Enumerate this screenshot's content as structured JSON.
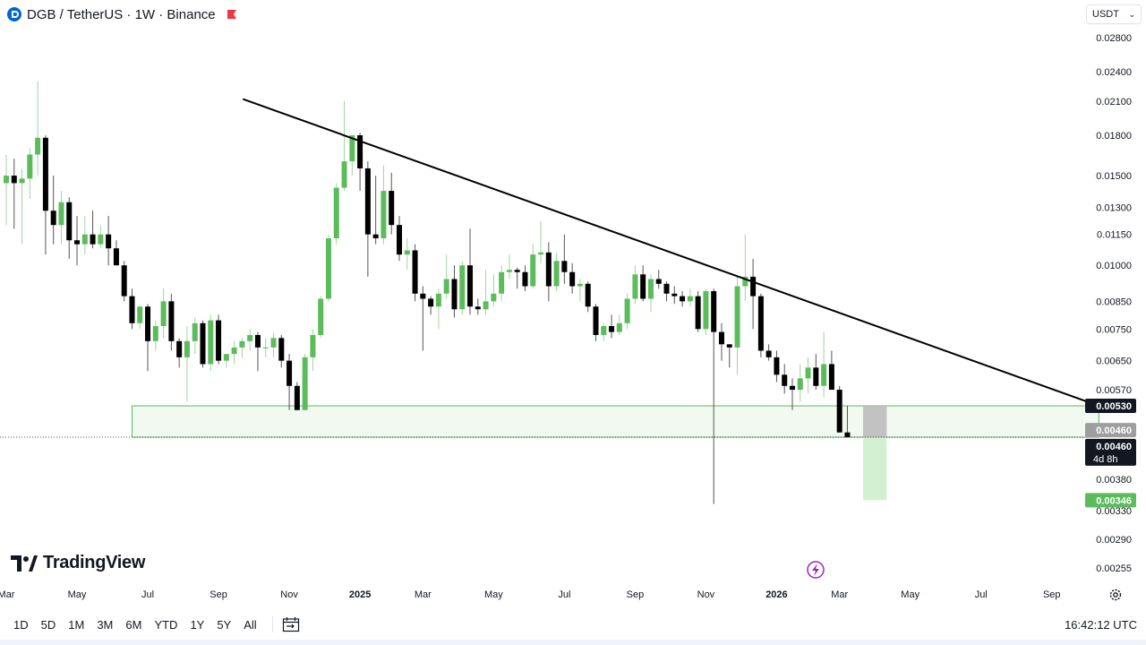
{
  "header": {
    "symbol": "DGB",
    "title": "DGB / TetherUS · 1W · Binance",
    "currency": "USDT"
  },
  "brand": "TradingView",
  "timeframes": [
    "1D",
    "5D",
    "1M",
    "3M",
    "6M",
    "YTD",
    "1Y",
    "5Y",
    "All"
  ],
  "clock": "16:42:12 UTC",
  "chart_data": {
    "type": "candlestick",
    "scale": "log",
    "ylim": [
      0.0024,
      0.03
    ],
    "y_ticks": [
      0.028,
      0.024,
      0.021,
      0.018,
      0.015,
      0.013,
      0.0115,
      0.01,
      0.0085,
      0.0075,
      0.0065,
      0.0057,
      0.0038,
      0.0033,
      0.0029,
      0.00255
    ],
    "y_tick_labels": [
      "0.02800",
      "0.02400",
      "0.02100",
      "0.01800",
      "0.01500",
      "0.01300",
      "0.01150",
      "0.01000",
      "0.00850",
      "0.00750",
      "0.00650",
      "0.00570",
      "0.00380",
      "0.00330",
      "0.00290",
      "0.00255"
    ],
    "x_labels": [
      {
        "label": "Mar",
        "week": 0,
        "bold": false
      },
      {
        "label": "May",
        "week": 9,
        "bold": false
      },
      {
        "label": "Jul",
        "week": 18,
        "bold": false
      },
      {
        "label": "Sep",
        "week": 27,
        "bold": false
      },
      {
        "label": "Nov",
        "week": 36,
        "bold": false
      },
      {
        "label": "2025",
        "week": 45,
        "bold": true
      },
      {
        "label": "Mar",
        "week": 53,
        "bold": false
      },
      {
        "label": "May",
        "week": 62,
        "bold": false
      },
      {
        "label": "Jul",
        "week": 71,
        "bold": false
      },
      {
        "label": "Sep",
        "week": 80,
        "bold": false
      },
      {
        "label": "Nov",
        "week": 89,
        "bold": false
      },
      {
        "label": "2026",
        "week": 98,
        "bold": true
      },
      {
        "label": "Mar",
        "week": 106,
        "bold": false
      },
      {
        "label": "May",
        "week": 115,
        "bold": false
      },
      {
        "label": "Jul",
        "week": 124,
        "bold": false
      },
      {
        "label": "Sep",
        "week": 133,
        "bold": false
      }
    ],
    "colors": {
      "up": "#5cbc5c",
      "down": "#000000",
      "support": "#5cbc5c",
      "trend": "#000000",
      "target": "#c8ecc8"
    },
    "candles": [
      {
        "o": 0.0145,
        "h": 0.0165,
        "l": 0.012,
        "c": 0.015
      },
      {
        "o": 0.015,
        "h": 0.0162,
        "l": 0.0118,
        "c": 0.0145
      },
      {
        "o": 0.0145,
        "h": 0.0155,
        "l": 0.011,
        "c": 0.0148
      },
      {
        "o": 0.0148,
        "h": 0.017,
        "l": 0.0135,
        "c": 0.0165
      },
      {
        "o": 0.0165,
        "h": 0.023,
        "l": 0.015,
        "c": 0.0178
      },
      {
        "o": 0.0178,
        "h": 0.018,
        "l": 0.0105,
        "c": 0.0128
      },
      {
        "o": 0.0128,
        "h": 0.015,
        "l": 0.011,
        "c": 0.012
      },
      {
        "o": 0.012,
        "h": 0.014,
        "l": 0.011,
        "c": 0.0133
      },
      {
        "o": 0.0133,
        "h": 0.0136,
        "l": 0.0103,
        "c": 0.0112
      },
      {
        "o": 0.0112,
        "h": 0.0125,
        "l": 0.01,
        "c": 0.011
      },
      {
        "o": 0.011,
        "h": 0.0125,
        "l": 0.0105,
        "c": 0.0115
      },
      {
        "o": 0.0115,
        "h": 0.0128,
        "l": 0.0108,
        "c": 0.011
      },
      {
        "o": 0.011,
        "h": 0.012,
        "l": 0.0108,
        "c": 0.0115
      },
      {
        "o": 0.0115,
        "h": 0.0125,
        "l": 0.01,
        "c": 0.0108
      },
      {
        "o": 0.0108,
        "h": 0.0112,
        "l": 0.01,
        "c": 0.01
      },
      {
        "o": 0.01,
        "h": 0.0102,
        "l": 0.0085,
        "c": 0.0087
      },
      {
        "o": 0.0087,
        "h": 0.009,
        "l": 0.0075,
        "c": 0.0077
      },
      {
        "o": 0.0077,
        "h": 0.0083,
        "l": 0.0075,
        "c": 0.0083
      },
      {
        "o": 0.0083,
        "h": 0.0084,
        "l": 0.0062,
        "c": 0.0071
      },
      {
        "o": 0.0071,
        "h": 0.0078,
        "l": 0.0068,
        "c": 0.0076
      },
      {
        "o": 0.0076,
        "h": 0.009,
        "l": 0.0072,
        "c": 0.0085
      },
      {
        "o": 0.0085,
        "h": 0.0088,
        "l": 0.0068,
        "c": 0.0071
      },
      {
        "o": 0.0071,
        "h": 0.0072,
        "l": 0.0063,
        "c": 0.0066
      },
      {
        "o": 0.0066,
        "h": 0.0076,
        "l": 0.0054,
        "c": 0.0071
      },
      {
        "o": 0.0071,
        "h": 0.0079,
        "l": 0.0067,
        "c": 0.0077
      },
      {
        "o": 0.0077,
        "h": 0.0078,
        "l": 0.0063,
        "c": 0.0064
      },
      {
        "o": 0.0064,
        "h": 0.008,
        "l": 0.0062,
        "c": 0.0078
      },
      {
        "o": 0.0078,
        "h": 0.008,
        "l": 0.0064,
        "c": 0.0065
      },
      {
        "o": 0.0065,
        "h": 0.0067,
        "l": 0.0063,
        "c": 0.0067
      },
      {
        "o": 0.0067,
        "h": 0.0071,
        "l": 0.0064,
        "c": 0.0069
      },
      {
        "o": 0.0069,
        "h": 0.0072,
        "l": 0.0066,
        "c": 0.0071
      },
      {
        "o": 0.0071,
        "h": 0.0075,
        "l": 0.0068,
        "c": 0.0073
      },
      {
        "o": 0.0073,
        "h": 0.0074,
        "l": 0.0062,
        "c": 0.0069
      },
      {
        "o": 0.0069,
        "h": 0.0072,
        "l": 0.0066,
        "c": 0.0069
      },
      {
        "o": 0.0069,
        "h": 0.0074,
        "l": 0.0066,
        "c": 0.0072
      },
      {
        "o": 0.0072,
        "h": 0.0073,
        "l": 0.0063,
        "c": 0.0065
      },
      {
        "o": 0.0065,
        "h": 0.0067,
        "l": 0.0052,
        "c": 0.0058
      },
      {
        "o": 0.0058,
        "h": 0.0059,
        "l": 0.0052,
        "c": 0.0052
      },
      {
        "o": 0.0052,
        "h": 0.0067,
        "l": 0.0052,
        "c": 0.0066
      },
      {
        "o": 0.0066,
        "h": 0.0075,
        "l": 0.0062,
        "c": 0.0073
      },
      {
        "o": 0.0073,
        "h": 0.0087,
        "l": 0.0072,
        "c": 0.0086
      },
      {
        "o": 0.0086,
        "h": 0.0115,
        "l": 0.0085,
        "c": 0.0113
      },
      {
        "o": 0.0113,
        "h": 0.0145,
        "l": 0.011,
        "c": 0.0142
      },
      {
        "o": 0.0142,
        "h": 0.021,
        "l": 0.014,
        "c": 0.016
      },
      {
        "o": 0.016,
        "h": 0.018,
        "l": 0.015,
        "c": 0.018
      },
      {
        "o": 0.018,
        "h": 0.0182,
        "l": 0.014,
        "c": 0.0155
      },
      {
        "o": 0.0155,
        "h": 0.016,
        "l": 0.0095,
        "c": 0.0115
      },
      {
        "o": 0.0115,
        "h": 0.015,
        "l": 0.011,
        "c": 0.0113
      },
      {
        "o": 0.0113,
        "h": 0.0157,
        "l": 0.011,
        "c": 0.014
      },
      {
        "o": 0.014,
        "h": 0.0152,
        "l": 0.0115,
        "c": 0.012
      },
      {
        "o": 0.012,
        "h": 0.0125,
        "l": 0.0102,
        "c": 0.0105
      },
      {
        "o": 0.0105,
        "h": 0.0113,
        "l": 0.0098,
        "c": 0.0107
      },
      {
        "o": 0.0107,
        "h": 0.011,
        "l": 0.0085,
        "c": 0.0088
      },
      {
        "o": 0.0088,
        "h": 0.0091,
        "l": 0.0068,
        "c": 0.0086
      },
      {
        "o": 0.0086,
        "h": 0.0087,
        "l": 0.008,
        "c": 0.0083
      },
      {
        "o": 0.0083,
        "h": 0.009,
        "l": 0.0075,
        "c": 0.0088
      },
      {
        "o": 0.0088,
        "h": 0.0105,
        "l": 0.0086,
        "c": 0.0094
      },
      {
        "o": 0.0094,
        "h": 0.01,
        "l": 0.0079,
        "c": 0.0082
      },
      {
        "o": 0.0082,
        "h": 0.0102,
        "l": 0.008,
        "c": 0.01
      },
      {
        "o": 0.01,
        "h": 0.0118,
        "l": 0.008,
        "c": 0.0083
      },
      {
        "o": 0.0083,
        "h": 0.0086,
        "l": 0.008,
        "c": 0.0082
      },
      {
        "o": 0.0082,
        "h": 0.0098,
        "l": 0.008,
        "c": 0.0085
      },
      {
        "o": 0.0085,
        "h": 0.0096,
        "l": 0.0083,
        "c": 0.0088
      },
      {
        "o": 0.0088,
        "h": 0.01,
        "l": 0.0085,
        "c": 0.0097
      },
      {
        "o": 0.0097,
        "h": 0.0105,
        "l": 0.0094,
        "c": 0.0098
      },
      {
        "o": 0.0098,
        "h": 0.0099,
        "l": 0.009,
        "c": 0.0097
      },
      {
        "o": 0.0097,
        "h": 0.01,
        "l": 0.0089,
        "c": 0.0091
      },
      {
        "o": 0.0091,
        "h": 0.011,
        "l": 0.009,
        "c": 0.0105
      },
      {
        "o": 0.0105,
        "h": 0.0122,
        "l": 0.0101,
        "c": 0.0106
      },
      {
        "o": 0.0106,
        "h": 0.0111,
        "l": 0.0085,
        "c": 0.0091
      },
      {
        "o": 0.0091,
        "h": 0.0106,
        "l": 0.0089,
        "c": 0.0102
      },
      {
        "o": 0.0102,
        "h": 0.0115,
        "l": 0.0092,
        "c": 0.0097
      },
      {
        "o": 0.0097,
        "h": 0.0101,
        "l": 0.0088,
        "c": 0.0091
      },
      {
        "o": 0.0091,
        "h": 0.0094,
        "l": 0.0085,
        "c": 0.0092
      },
      {
        "o": 0.0092,
        "h": 0.0093,
        "l": 0.0081,
        "c": 0.0083
      },
      {
        "o": 0.0083,
        "h": 0.0084,
        "l": 0.0071,
        "c": 0.0073
      },
      {
        "o": 0.0073,
        "h": 0.0077,
        "l": 0.0071,
        "c": 0.0076
      },
      {
        "o": 0.0076,
        "h": 0.008,
        "l": 0.0072,
        "c": 0.0074
      },
      {
        "o": 0.0074,
        "h": 0.008,
        "l": 0.0073,
        "c": 0.0077
      },
      {
        "o": 0.0077,
        "h": 0.0088,
        "l": 0.0075,
        "c": 0.0086
      },
      {
        "o": 0.0086,
        "h": 0.01,
        "l": 0.0084,
        "c": 0.0096
      },
      {
        "o": 0.0096,
        "h": 0.01,
        "l": 0.0085,
        "c": 0.0086
      },
      {
        "o": 0.0086,
        "h": 0.0096,
        "l": 0.0081,
        "c": 0.0094
      },
      {
        "o": 0.0094,
        "h": 0.0098,
        "l": 0.009,
        "c": 0.0092
      },
      {
        "o": 0.0092,
        "h": 0.0093,
        "l": 0.0085,
        "c": 0.0088
      },
      {
        "o": 0.0088,
        "h": 0.0091,
        "l": 0.0084,
        "c": 0.0087
      },
      {
        "o": 0.0087,
        "h": 0.0089,
        "l": 0.0083,
        "c": 0.0085
      },
      {
        "o": 0.0085,
        "h": 0.009,
        "l": 0.0083,
        "c": 0.0087
      },
      {
        "o": 0.0087,
        "h": 0.0089,
        "l": 0.0074,
        "c": 0.0075
      },
      {
        "o": 0.0075,
        "h": 0.009,
        "l": 0.0073,
        "c": 0.0089
      },
      {
        "o": 0.0089,
        "h": 0.009,
        "l": 0.0034,
        "c": 0.0074
      },
      {
        "o": 0.0074,
        "h": 0.0077,
        "l": 0.0065,
        "c": 0.007
      },
      {
        "o": 0.007,
        "h": 0.007,
        "l": 0.0063,
        "c": 0.0069
      },
      {
        "o": 0.0069,
        "h": 0.0095,
        "l": 0.0061,
        "c": 0.0091
      },
      {
        "o": 0.0091,
        "h": 0.0115,
        "l": 0.0085,
        "c": 0.0095
      },
      {
        "o": 0.0095,
        "h": 0.0103,
        "l": 0.0075,
        "c": 0.0087
      },
      {
        "o": 0.0087,
        "h": 0.0088,
        "l": 0.0066,
        "c": 0.0068
      },
      {
        "o": 0.0068,
        "h": 0.007,
        "l": 0.0065,
        "c": 0.0066
      },
      {
        "o": 0.0066,
        "h": 0.0068,
        "l": 0.0059,
        "c": 0.0061
      },
      {
        "o": 0.0061,
        "h": 0.0064,
        "l": 0.0056,
        "c": 0.0058
      },
      {
        "o": 0.0058,
        "h": 0.006,
        "l": 0.0052,
        "c": 0.0057
      },
      {
        "o": 0.0057,
        "h": 0.0064,
        "l": 0.0054,
        "c": 0.006
      },
      {
        "o": 0.006,
        "h": 0.0066,
        "l": 0.0056,
        "c": 0.0063
      },
      {
        "o": 0.0063,
        "h": 0.0067,
        "l": 0.0057,
        "c": 0.0058
      },
      {
        "o": 0.0058,
        "h": 0.0074,
        "l": 0.0055,
        "c": 0.0064
      },
      {
        "o": 0.0064,
        "h": 0.0068,
        "l": 0.0057,
        "c": 0.0057
      },
      {
        "o": 0.0057,
        "h": 0.0058,
        "l": 0.0047,
        "c": 0.0047
      },
      {
        "o": 0.0047,
        "h": 0.0053,
        "l": 0.0046,
        "c": 0.0046
      }
    ],
    "trendline": {
      "from": {
        "week": 30.1,
        "price": 0.0212
      },
      "to": {
        "week": 139.0,
        "price": 0.0053
      }
    },
    "support_zone": {
      "from_week": 16,
      "to_week": 139,
      "top": 0.0053,
      "bottom": 0.0046
    },
    "target_zone": {
      "from_week": 109,
      "to_week": 112,
      "top": 0.0046,
      "bottom": 0.00346
    },
    "position_box": {
      "from_week": 109,
      "to_week": 112,
      "top": 0.0053,
      "bottom": 0.0046
    },
    "current_price": 0.0046,
    "price_labels": {
      "resistance": "0.00530",
      "stop": "0.00460",
      "current": "0.00460",
      "countdown": "4d 8h",
      "target": "0.00346"
    }
  }
}
